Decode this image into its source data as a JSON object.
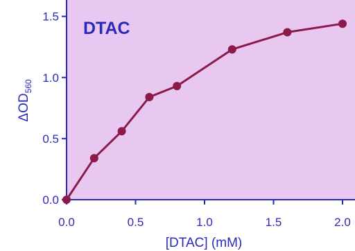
{
  "chart_data": {
    "type": "line",
    "title": "DTAC",
    "xlabel": "[DTAC] (mM)",
    "ylabel": {
      "prefix": "ΔOD",
      "subscript": "560"
    },
    "xlim": [
      0,
      2.0
    ],
    "ylim": [
      0,
      1.6
    ],
    "x_ticks": [
      "0.0",
      "0.5",
      "1.0",
      "1.5",
      "2.0"
    ],
    "y_ticks": [
      "0.0",
      "0.5",
      "1.0",
      "1.5"
    ],
    "x_tick_values": [
      0,
      0.5,
      1.0,
      1.5,
      2.0
    ],
    "y_tick_values": [
      0,
      0.5,
      1.0,
      1.5
    ],
    "grid": false,
    "legend": "none",
    "series": [
      {
        "x": [
          0,
          0.2,
          0.4,
          0.6,
          0.8,
          1.2,
          1.6,
          2.0
        ],
        "y": [
          0.0,
          0.34,
          0.56,
          0.84,
          0.93,
          1.23,
          1.37,
          1.44
        ]
      }
    ],
    "colors": {
      "plot_background": "#e8c8f0",
      "line": "#8b1a4a",
      "marker": "#8b1a4a",
      "axis": "#2a2ab8",
      "text": "#2a2ab8"
    }
  }
}
